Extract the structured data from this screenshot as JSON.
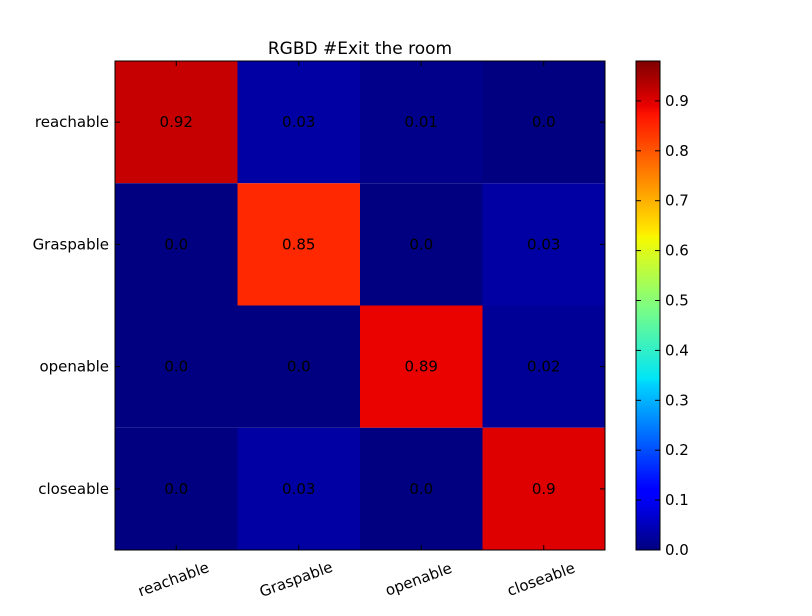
{
  "chart_data": {
    "type": "heatmap",
    "title": "RGBD #Exit the room",
    "xlabel": "",
    "ylabel": "",
    "x_categories": [
      "reachable",
      "Graspable",
      "openable",
      "closeable"
    ],
    "y_categories": [
      "reachable",
      "Graspable",
      "openable",
      "closeable"
    ],
    "values": [
      [
        0.92,
        0.03,
        0.01,
        0.0
      ],
      [
        0.0,
        0.85,
        0.0,
        0.03
      ],
      [
        0.0,
        0.0,
        0.89,
        0.02
      ],
      [
        0.0,
        0.03,
        0.0,
        0.9
      ]
    ],
    "value_labels": [
      [
        "0.92",
        "0.03",
        "0.01",
        "0.0"
      ],
      [
        "0.0",
        "0.85",
        "0.0",
        "0.03"
      ],
      [
        "0.0",
        "0.0",
        "0.89",
        "0.02"
      ],
      [
        "0.0",
        "0.03",
        "0.0",
        "0.9"
      ]
    ],
    "colormap": "jet",
    "colorbar": {
      "range": [
        0.0,
        0.98
      ],
      "ticks": [
        0.0,
        0.1,
        0.2,
        0.3,
        0.4,
        0.5,
        0.6,
        0.7,
        0.8,
        0.9
      ],
      "tick_labels": [
        "0.0",
        "0.1",
        "0.2",
        "0.3",
        "0.4",
        "0.5",
        "0.6",
        "0.7",
        "0.8",
        "0.9"
      ]
    },
    "grid": false
  }
}
